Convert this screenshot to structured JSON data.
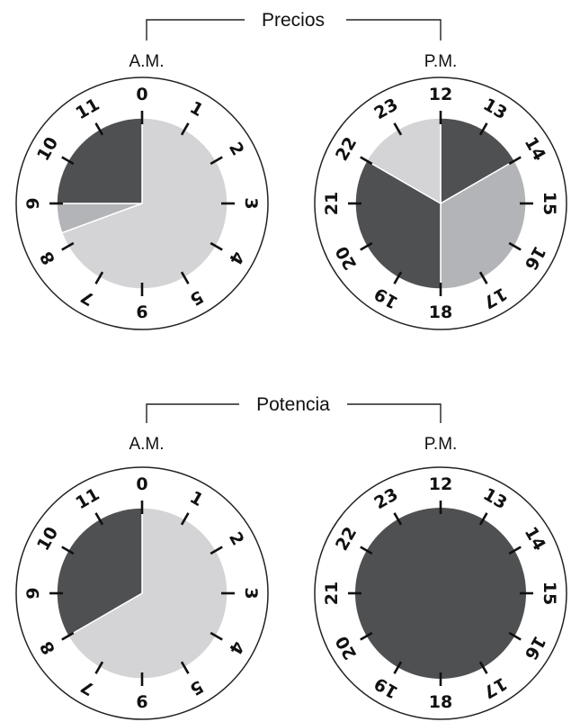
{
  "groups": [
    {
      "title": "Precios",
      "clocks": [
        {
          "period": "A.M.",
          "hours": [
            "0",
            "1",
            "2",
            "3",
            "4",
            "5",
            "6",
            "7",
            "8",
            "9",
            "10",
            "11"
          ],
          "segments": [
            {
              "start": 0,
              "end": 8.33,
              "color": "#d4d4d6"
            },
            {
              "start": 8.33,
              "end": 9,
              "color": "#b3b4b7"
            },
            {
              "start": 9,
              "end": 12,
              "color": "#4f5052"
            }
          ]
        },
        {
          "period": "P.M.",
          "hours": [
            "12",
            "13",
            "14",
            "15",
            "16",
            "17",
            "18",
            "19",
            "20",
            "21",
            "22",
            "23"
          ],
          "segments": [
            {
              "start": 0,
              "end": 2,
              "color": "#4f5052"
            },
            {
              "start": 2,
              "end": 6,
              "color": "#b3b4b7"
            },
            {
              "start": 6,
              "end": 10,
              "color": "#4f5052"
            },
            {
              "start": 10,
              "end": 12,
              "color": "#d4d4d6"
            }
          ]
        }
      ]
    },
    {
      "title": "Potencia",
      "clocks": [
        {
          "period": "A.M.",
          "hours": [
            "0",
            "1",
            "2",
            "3",
            "4",
            "5",
            "6",
            "7",
            "8",
            "9",
            "10",
            "11"
          ],
          "segments": [
            {
              "start": 0,
              "end": 8,
              "color": "#d4d4d6"
            },
            {
              "start": 8,
              "end": 12,
              "color": "#4f5052"
            }
          ]
        },
        {
          "period": "P.M.",
          "hours": [
            "12",
            "13",
            "14",
            "15",
            "16",
            "17",
            "18",
            "19",
            "20",
            "21",
            "22",
            "23"
          ],
          "segments": [
            {
              "start": 0,
              "end": 12,
              "color": "#4f5052"
            }
          ]
        }
      ]
    }
  ]
}
